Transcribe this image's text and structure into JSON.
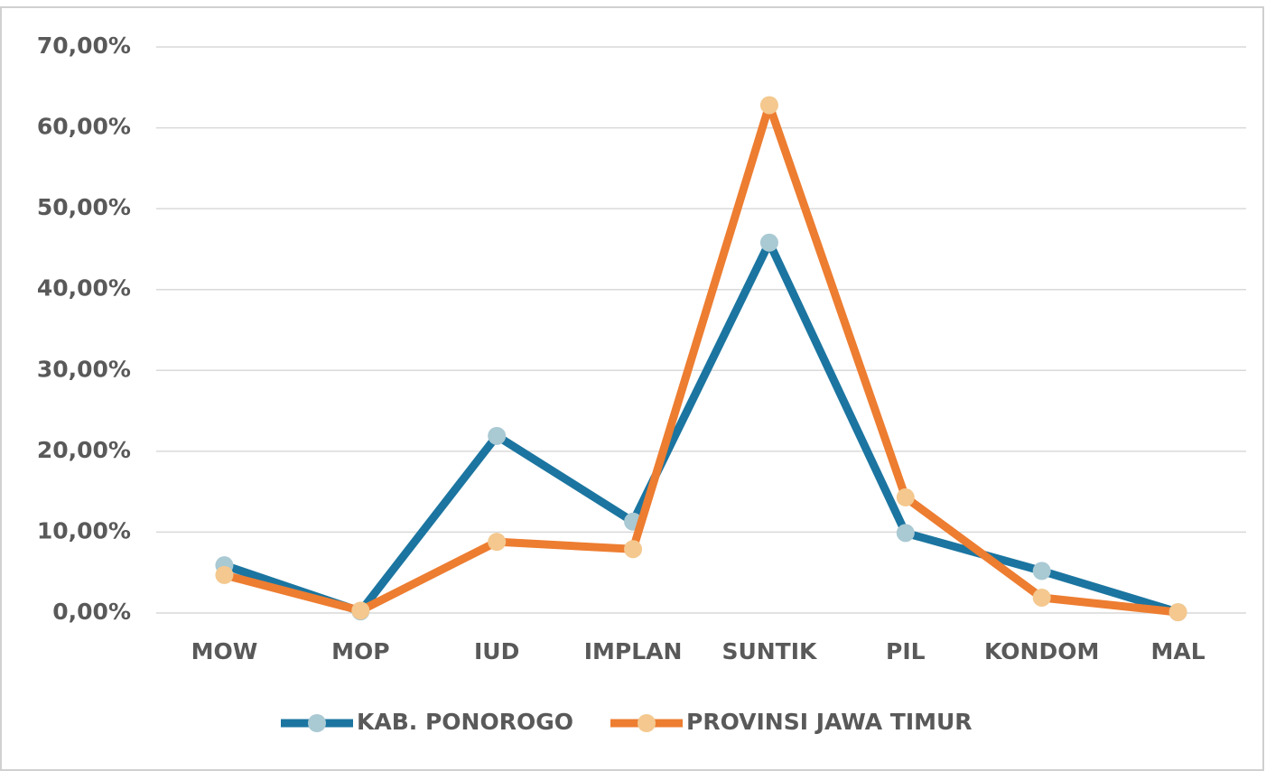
{
  "chart_data": {
    "type": "line",
    "categories": [
      "MOW",
      "MOP",
      "IUD",
      "IMPLAN",
      "SUNTIK",
      "PIL",
      "KONDOM",
      "MAL"
    ],
    "series": [
      {
        "name": "KAB. PONOROGO",
        "color": "#1b75a0",
        "marker_color": "#a9c9d3",
        "values": [
          5.9,
          0.2,
          21.9,
          11.3,
          45.8,
          9.9,
          5.2,
          0.1
        ]
      },
      {
        "name": "PROVINSI JAWA TIMUR",
        "color": "#ed7d31",
        "marker_color": "#f4c88e",
        "values": [
          4.7,
          0.3,
          8.8,
          7.9,
          62.8,
          14.3,
          1.9,
          0.1
        ]
      }
    ],
    "ylim": [
      0,
      70
    ],
    "yticks": [
      {
        "value": 0,
        "label": "0,00%"
      },
      {
        "value": 10,
        "label": "10,00%"
      },
      {
        "value": 20,
        "label": "20,00%"
      },
      {
        "value": 30,
        "label": "30,00%"
      },
      {
        "value": 40,
        "label": "40,00%"
      },
      {
        "value": 50,
        "label": "50,00%"
      },
      {
        "value": 60,
        "label": "60,00%"
      },
      {
        "value": 70,
        "label": "70,00%"
      }
    ],
    "grid": true,
    "legend": "bottom"
  }
}
